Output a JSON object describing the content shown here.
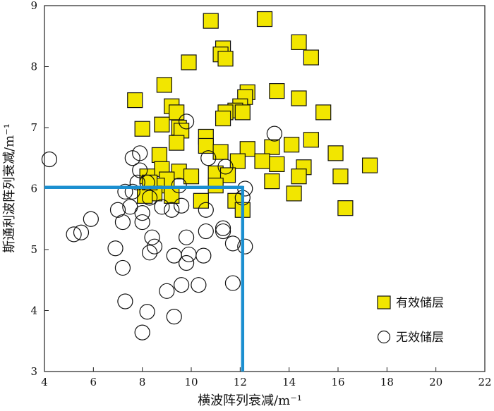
{
  "chart_data": {
    "type": "scatter",
    "xlabel": "横波阵列衰减/m⁻¹",
    "ylabel": "斯通利波阵列衰减/m⁻¹",
    "xlim": [
      4,
      22
    ],
    "ylim": [
      3,
      9
    ],
    "xticks": [
      4,
      6,
      8,
      10,
      12,
      14,
      16,
      18,
      20,
      22
    ],
    "yticks": [
      3,
      4,
      5,
      6,
      7,
      8,
      9
    ],
    "grid": false,
    "legend_position": "bottom-right",
    "threshold": {
      "x": 12.1,
      "y": 6.02,
      "color": "#1b8fd0"
    },
    "series": [
      {
        "name": "有效储层",
        "marker": "square",
        "fill": "#f2e600",
        "stroke": "#111111",
        "points": [
          [
            10.8,
            8.75
          ],
          [
            13.0,
            8.78
          ],
          [
            14.4,
            8.4
          ],
          [
            14.9,
            8.15
          ],
          [
            9.9,
            8.07
          ],
          [
            11.3,
            8.3
          ],
          [
            11.2,
            8.2
          ],
          [
            11.4,
            8.13
          ],
          [
            8.9,
            7.7
          ],
          [
            13.5,
            7.6
          ],
          [
            12.3,
            7.58
          ],
          [
            12.2,
            7.5
          ],
          [
            7.7,
            7.45
          ],
          [
            14.4,
            7.48
          ],
          [
            9.2,
            7.35
          ],
          [
            12.0,
            7.35
          ],
          [
            11.8,
            7.28
          ],
          [
            12.1,
            7.25
          ],
          [
            11.4,
            7.25
          ],
          [
            11.3,
            7.15
          ],
          [
            15.4,
            7.25
          ],
          [
            9.4,
            7.25
          ],
          [
            8.8,
            7.05
          ],
          [
            9.5,
            7.0
          ],
          [
            9.6,
            6.95
          ],
          [
            8.0,
            6.98
          ],
          [
            10.6,
            6.85
          ],
          [
            10.6,
            6.7
          ],
          [
            9.4,
            6.75
          ],
          [
            14.9,
            6.8
          ],
          [
            14.1,
            6.72
          ],
          [
            13.3,
            6.68
          ],
          [
            12.3,
            6.65
          ],
          [
            11.2,
            6.6
          ],
          [
            15.9,
            6.58
          ],
          [
            8.7,
            6.55
          ],
          [
            11.9,
            6.45
          ],
          [
            12.9,
            6.45
          ],
          [
            13.5,
            6.4
          ],
          [
            17.3,
            6.38
          ],
          [
            14.6,
            6.35
          ],
          [
            8.8,
            6.32
          ],
          [
            9.5,
            6.28
          ],
          [
            11.0,
            6.25
          ],
          [
            11.5,
            6.22
          ],
          [
            8.2,
            6.2
          ],
          [
            14.4,
            6.2
          ],
          [
            16.1,
            6.2
          ],
          [
            9.0,
            6.15
          ],
          [
            8.6,
            6.05
          ],
          [
            11.0,
            6.05
          ],
          [
            13.3,
            6.12
          ],
          [
            8.5,
            5.92
          ],
          [
            8.1,
            5.88
          ],
          [
            9.2,
            5.88
          ],
          [
            10.4,
            5.8
          ],
          [
            14.2,
            5.92
          ],
          [
            11.8,
            5.8
          ],
          [
            12.1,
            5.65
          ],
          [
            16.3,
            5.68
          ],
          [
            8.3,
            6.1
          ],
          [
            10.0,
            6.2
          ]
        ]
      },
      {
        "name": "无效储层",
        "marker": "circle",
        "fill": "#ffffff",
        "stroke": "#111111",
        "points": [
          [
            4.2,
            6.48
          ],
          [
            7.9,
            6.58
          ],
          [
            7.6,
            6.5
          ],
          [
            9.8,
            7.1
          ],
          [
            13.4,
            6.9
          ],
          [
            10.7,
            6.5
          ],
          [
            11.4,
            6.36
          ],
          [
            7.9,
            6.3
          ],
          [
            8.2,
            6.1
          ],
          [
            7.8,
            6.1
          ],
          [
            9.5,
            6.05
          ],
          [
            12.2,
            6.0
          ],
          [
            7.3,
            5.95
          ],
          [
            8.3,
            5.85
          ],
          [
            7.6,
            5.95
          ],
          [
            12.1,
            5.85
          ],
          [
            7.5,
            5.7
          ],
          [
            8.8,
            5.7
          ],
          [
            9.2,
            5.65
          ],
          [
            9.6,
            5.72
          ],
          [
            7.0,
            5.65
          ],
          [
            8.0,
            5.6
          ],
          [
            5.9,
            5.5
          ],
          [
            7.2,
            5.45
          ],
          [
            10.6,
            5.65
          ],
          [
            8.0,
            5.45
          ],
          [
            5.2,
            5.25
          ],
          [
            5.5,
            5.28
          ],
          [
            8.4,
            5.2
          ],
          [
            10.6,
            5.3
          ],
          [
            11.3,
            5.3
          ],
          [
            11.3,
            5.35
          ],
          [
            9.8,
            5.2
          ],
          [
            8.5,
            5.05
          ],
          [
            11.7,
            5.1
          ],
          [
            6.9,
            5.02
          ],
          [
            12.2,
            5.05
          ],
          [
            8.3,
            4.95
          ],
          [
            9.3,
            4.9
          ],
          [
            9.9,
            4.92
          ],
          [
            10.5,
            4.9
          ],
          [
            9.8,
            4.78
          ],
          [
            7.2,
            4.7
          ],
          [
            9.6,
            4.42
          ],
          [
            10.3,
            4.42
          ],
          [
            11.7,
            4.45
          ],
          [
            9.0,
            4.32
          ],
          [
            7.3,
            4.15
          ],
          [
            8.2,
            3.98
          ],
          [
            9.3,
            3.9
          ],
          [
            8.0,
            3.64
          ]
        ]
      }
    ]
  }
}
